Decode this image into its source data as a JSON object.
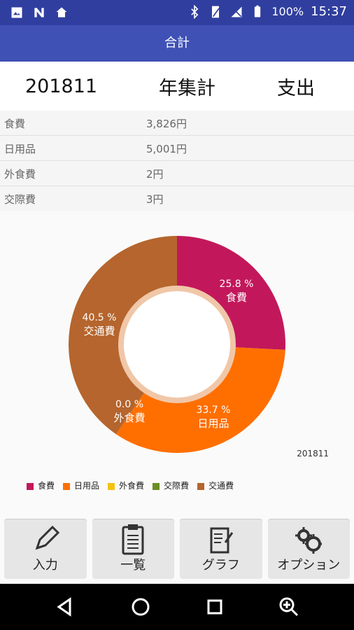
{
  "statusbar": {
    "battery": "100%",
    "time": "15:37"
  },
  "appbar": {
    "title": "合計"
  },
  "summary": {
    "period": "201811",
    "mode": "年集計",
    "type": "支出"
  },
  "rows": [
    {
      "category": "食費",
      "amount": "3,826円"
    },
    {
      "category": "日用品",
      "amount": "5,001円"
    },
    {
      "category": "外食費",
      "amount": "2円"
    },
    {
      "category": "交際費",
      "amount": "3円"
    }
  ],
  "chart_data": {
    "type": "pie",
    "title": "",
    "subtitle": "201811",
    "slices": [
      {
        "label": "食費",
        "percent": 25.8,
        "color": "#c2185b"
      },
      {
        "label": "日用品",
        "percent": 33.7,
        "color": "#ff6f00"
      },
      {
        "label": "外食費",
        "percent": 0.0,
        "color": "#f4c20d"
      },
      {
        "label": "交際費",
        "percent": 0.0,
        "color": "#6b8e23"
      },
      {
        "label": "交通費",
        "percent": 40.5,
        "color": "#b5652d"
      }
    ],
    "shown_labels": [
      {
        "text": "25.8 %",
        "label": "食費"
      },
      {
        "text": "33.7 %",
        "label": "日用品"
      },
      {
        "text": "0.0 %",
        "label": "外食費"
      },
      {
        "text": "40.5 %",
        "label": "交通費"
      }
    ],
    "legend": [
      "食費",
      "日用品",
      "外食費",
      "交際費",
      "交通費"
    ],
    "legend_position": "bottom-left"
  },
  "bottom_buttons": [
    {
      "label": "入力",
      "icon": "pencil-icon"
    },
    {
      "label": "一覧",
      "icon": "clipboard-icon"
    },
    {
      "label": "グラフ",
      "icon": "notebook-icon"
    },
    {
      "label": "オプション",
      "icon": "gears-icon"
    }
  ],
  "navbar": [
    {
      "icon": "back-icon"
    },
    {
      "icon": "home-icon"
    },
    {
      "icon": "recents-icon"
    },
    {
      "icon": "zoom-icon"
    }
  ]
}
